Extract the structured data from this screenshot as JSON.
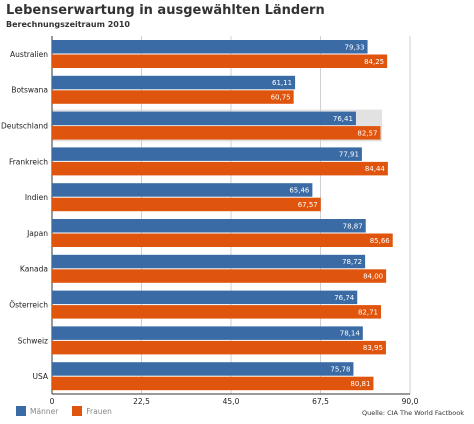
{
  "chart_data": {
    "type": "bar",
    "orientation": "horizontal",
    "title": "Lebenserwartung in ausgewählten Ländern",
    "subtitle": "Berechnungszeitraum 2010",
    "categories": [
      "Australien",
      "Botswana",
      "Deutschland",
      "Frankreich",
      "Indien",
      "Japan",
      "Kanada",
      "Österreich",
      "Schweiz",
      "USA"
    ],
    "highlighted_category": "Deutschland",
    "series": [
      {
        "name": "Männer",
        "color": "#3b6ba5",
        "values": [
          79.33,
          61.11,
          76.41,
          77.91,
          65.46,
          78.87,
          78.72,
          76.74,
          78.14,
          75.78
        ],
        "labels": [
          "79,33",
          "61,11",
          "76,41",
          "77,91",
          "65,46",
          "78,87",
          "78,72",
          "76,74",
          "78,14",
          "75,78"
        ]
      },
      {
        "name": "Frauen",
        "color": "#e0550e",
        "values": [
          84.25,
          60.75,
          82.57,
          84.44,
          67.57,
          85.66,
          84.0,
          82.71,
          83.95,
          80.81
        ],
        "labels": [
          "84,25",
          "60,75",
          "82,57",
          "84,44",
          "67,57",
          "85,66",
          "84,00",
          "82,71",
          "83,95",
          "80,81"
        ]
      }
    ],
    "xlim": [
      0,
      90
    ],
    "xticks": [
      0,
      22.5,
      45,
      67.5,
      90
    ],
    "xtick_labels": [
      "0",
      "22,5",
      "45,0",
      "67,5",
      "90,0"
    ],
    "grid": true,
    "legend_position": "bottom-left",
    "source": "Quelle: CIA The World Factbook"
  }
}
